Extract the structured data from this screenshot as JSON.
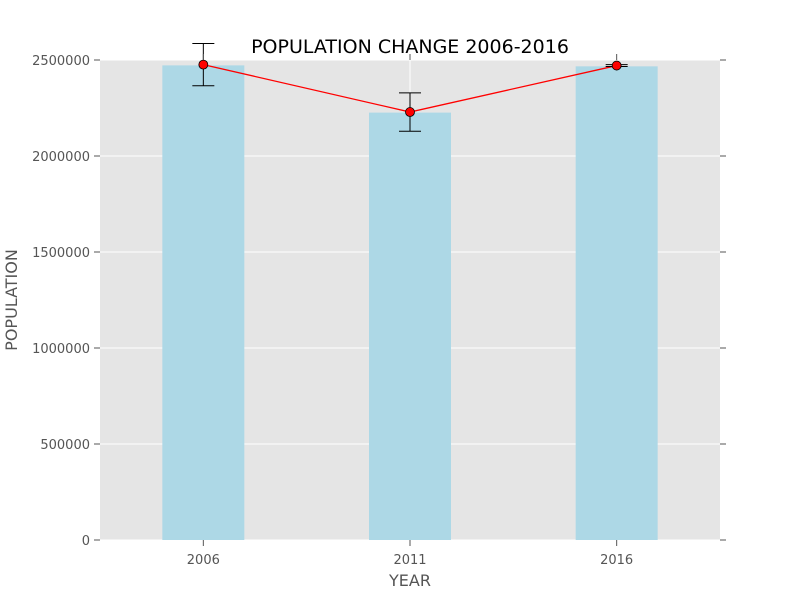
{
  "chart_data": {
    "type": "bar",
    "title": "POPULATION CHANGE 2006-2016",
    "xlabel": "YEAR",
    "ylabel": "POPULATION",
    "categories": [
      "2006",
      "2011",
      "2016"
    ],
    "values": [
      2472000,
      2226000,
      2467000
    ],
    "line_series": {
      "values": [
        2476000,
        2229000,
        2471000
      ],
      "error": [
        110000,
        100000,
        5000
      ]
    },
    "ylim": [
      0,
      2500000
    ],
    "yticks": [
      0,
      500000,
      1000000,
      1500000,
      2000000,
      2500000
    ],
    "ytick_labels": [
      "0",
      "500000",
      "1000000",
      "1500000",
      "2000000",
      "2500000"
    ],
    "grid": true,
    "colors": {
      "bar": "#add8e6",
      "line": "#ff0000",
      "marker_fill": "#ff0000",
      "marker_edge": "#000000",
      "error_bar": "#000000",
      "plot_background": "#e5e5e5",
      "grid": "#ffffff"
    }
  }
}
